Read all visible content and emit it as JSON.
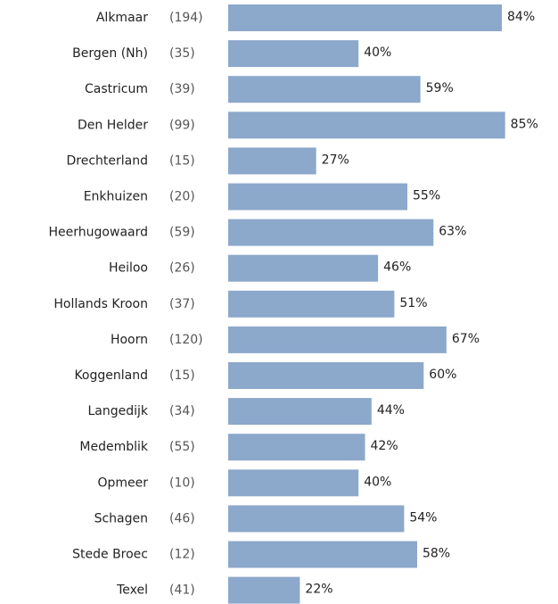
{
  "chart_data": {
    "type": "bar",
    "orientation": "horizontal",
    "categories": [
      "Alkmaar",
      "Bergen (Nh)",
      "Castricum",
      "Den Helder",
      "Drechterland",
      "Enkhuizen",
      "Heerhugowaard",
      "Heiloo",
      "Hollands Kroon",
      "Hoorn",
      "Koggenland",
      "Langedijk",
      "Medemblik",
      "Opmeer",
      "Schagen",
      "Stede Broec",
      "Texel"
    ],
    "counts": [
      "(194)",
      "(35)",
      "(39)",
      "(99)",
      "(15)",
      "(20)",
      "(59)",
      "(26)",
      "(37)",
      "(120)",
      "(15)",
      "(34)",
      "(55)",
      "(10)",
      "(46)",
      "(12)",
      "(41)"
    ],
    "values": [
      84,
      40,
      59,
      85,
      27,
      55,
      63,
      46,
      51,
      67,
      60,
      44,
      42,
      40,
      54,
      58,
      22
    ],
    "value_labels": [
      "84%",
      "40%",
      "59%",
      "85%",
      "27%",
      "55%",
      "63%",
      "46%",
      "51%",
      "67%",
      "60%",
      "44%",
      "42%",
      "40%",
      "54%",
      "58%",
      "22%"
    ],
    "color": "#8ca8cb",
    "xlim": [
      0,
      100
    ]
  }
}
